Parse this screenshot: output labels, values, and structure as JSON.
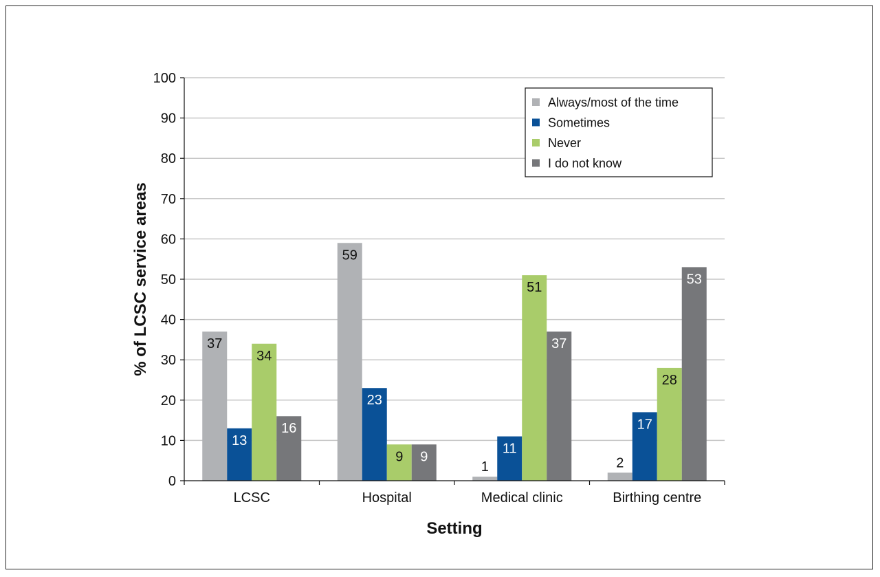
{
  "chart_data": {
    "type": "bar",
    "categories": [
      "LCSC",
      "Hospital",
      "Medical clinic",
      "Birthing centre"
    ],
    "series": [
      {
        "name": "Always/most of the time",
        "values": [
          37,
          59,
          1,
          2
        ],
        "color": "#b0b2b5",
        "label_color": "#111111"
      },
      {
        "name": "Sometimes",
        "values": [
          13,
          23,
          11,
          17
        ],
        "color": "#0a5197",
        "label_color": "#ffffff"
      },
      {
        "name": "Never",
        "values": [
          34,
          9,
          51,
          28
        ],
        "color": "#a9cc6a",
        "label_color": "#111111"
      },
      {
        "name": "I do not know",
        "values": [
          16,
          9,
          37,
          53
        ],
        "color": "#76777a",
        "label_color": "#ffffff"
      }
    ],
    "xlabel": "Setting",
    "ylabel": "% of LCSC service areas",
    "ylim": [
      0,
      100
    ],
    "yticks": [
      0,
      10,
      20,
      30,
      40,
      50,
      60,
      70,
      80,
      90,
      100
    ],
    "grid": true,
    "legend_position": "top-right"
  }
}
